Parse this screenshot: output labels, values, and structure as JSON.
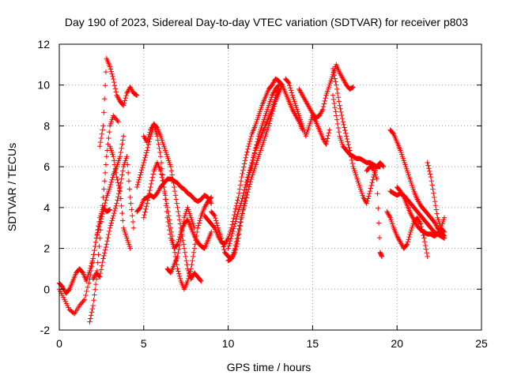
{
  "chart_data": {
    "type": "scatter",
    "title": "Day 190 of 2023, Sidereal Day-to-day VTEC variation (SDTVAR) for receiver p803",
    "xlabel": "GPS time / hours",
    "ylabel": "SDTVAR / TECUs",
    "xlim": [
      0,
      25
    ],
    "ylim": [
      -2,
      12
    ],
    "x_ticks": [
      "0",
      "5",
      "10",
      "15",
      "20",
      "25"
    ],
    "y_ticks": [
      "-2",
      "0",
      "2",
      "4",
      "6",
      "8",
      "10",
      "12"
    ],
    "grid": true,
    "marker": "+",
    "color": "#ff0000",
    "series": [
      {
        "x": [
          0.0,
          0.3,
          0.6,
          0.9,
          1.2,
          1.5,
          1.8,
          2.0,
          2.2,
          2.4,
          2.6,
          2.8,
          3.0,
          3.2,
          3.4,
          3.6,
          3.8
        ],
        "y": [
          0.0,
          -0.5,
          -1.0,
          -1.2,
          -0.8,
          -0.5,
          0.5,
          1.5,
          2.5,
          3.2,
          3.8,
          4.5,
          5.0,
          5.6,
          6.0,
          6.5,
          7.5
        ]
      },
      {
        "x": [
          0.0,
          0.2,
          0.4,
          0.6,
          0.8,
          1.0,
          1.2,
          1.4,
          1.6,
          1.8,
          2.0,
          2.2,
          2.4,
          2.6,
          2.8,
          3.0
        ],
        "y": [
          0.3,
          0.1,
          -0.2,
          0.0,
          0.4,
          0.8,
          1.0,
          0.8,
          0.4,
          0.9,
          1.5,
          2.5,
          3.5,
          4.0,
          3.8,
          3.9
        ]
      },
      {
        "x": [
          1.8,
          2.0,
          2.2,
          2.4,
          2.6,
          2.8,
          3.0,
          3.2,
          3.5
        ],
        "y": [
          -1.6,
          -0.8,
          0.5,
          2.5,
          4.5,
          6.5,
          8.0,
          8.5,
          8.2
        ]
      },
      {
        "x": [
          2.4,
          2.6,
          2.8,
          3.0,
          3.2,
          3.4,
          3.6,
          3.8,
          4.0,
          4.2,
          4.4,
          4.6
        ],
        "y": [
          7.0,
          8.0,
          11.3,
          10.9,
          10.3,
          9.5,
          9.2,
          9.0,
          9.6,
          9.9,
          9.6,
          9.5
        ]
      },
      {
        "x": [
          2.0,
          2.2,
          2.4,
          2.6,
          2.8,
          3.0,
          3.2,
          3.4,
          3.6,
          3.8,
          4.0,
          4.2,
          4.4
        ],
        "y": [
          0.5,
          0.8,
          0.6,
          1.5,
          2.2,
          3.0,
          3.6,
          4.2,
          5.0,
          6.0,
          6.5,
          4.5,
          3.0
        ]
      },
      {
        "x": [
          3.0,
          3.2,
          3.4,
          3.6,
          3.8,
          4.0,
          4.2
        ],
        "y": [
          7.0,
          6.5,
          5.5,
          4.8,
          3.0,
          2.5,
          2.0
        ]
      },
      {
        "x": [
          5.0,
          5.2,
          5.4,
          5.6,
          5.8,
          6.0,
          6.2,
          6.4,
          6.6,
          6.8,
          7.0,
          7.2,
          7.4,
          7.6,
          7.8,
          8.0,
          8.2,
          8.4
        ],
        "y": [
          7.5,
          7.2,
          7.8,
          8.1,
          7.9,
          7.5,
          7.0,
          6.5,
          6.0,
          5.0,
          4.0,
          3.0,
          2.0,
          1.0,
          0.5,
          0.8,
          0.6,
          0.4
        ]
      },
      {
        "x": [
          5.0,
          5.2,
          5.4,
          5.6,
          5.8,
          6.0,
          6.2,
          6.4,
          6.6,
          6.8,
          7.0,
          7.2,
          7.4,
          7.6,
          7.8,
          8.0,
          8.2,
          8.4,
          8.6,
          8.8,
          9.0
        ],
        "y": [
          3.5,
          4.2,
          5.0,
          5.8,
          6.2,
          5.8,
          5.0,
          4.0,
          3.0,
          2.0,
          1.0,
          0.4,
          0.0,
          0.4,
          1.0,
          2.0,
          3.0,
          3.6,
          4.0,
          4.3,
          4.5
        ]
      },
      {
        "x": [
          4.6,
          4.8,
          5.0,
          5.2,
          5.4,
          5.6,
          5.8,
          6.0,
          6.2,
          6.4,
          6.6,
          6.8,
          7.0,
          7.2,
          7.4,
          7.6,
          7.8,
          8.0,
          8.2,
          8.4,
          8.6,
          8.8,
          9.0
        ],
        "y": [
          3.8,
          4.0,
          4.4,
          4.5,
          4.6,
          4.5,
          4.7,
          5.0,
          5.2,
          5.4,
          5.4,
          5.3,
          5.2,
          5.0,
          4.9,
          4.7,
          4.6,
          4.4,
          4.3,
          4.4,
          4.6,
          4.5,
          4.2
        ]
      },
      {
        "x": [
          4.6,
          4.8,
          5.0,
          5.2,
          5.4,
          5.6,
          5.8,
          6.0,
          6.2,
          6.4,
          6.6,
          6.8,
          7.0,
          7.2,
          7.4,
          7.6,
          7.8,
          8.0,
          8.2,
          8.4,
          8.6,
          8.8,
          9.0
        ],
        "y": [
          5.0,
          5.6,
          6.2,
          6.8,
          7.5,
          8.0,
          7.5,
          6.5,
          5.0,
          3.5,
          2.5,
          2.0,
          2.2,
          2.8,
          3.2,
          3.4,
          3.0,
          2.6,
          2.3,
          2.1,
          2.0,
          2.4,
          2.8
        ]
      },
      {
        "x": [
          6.4,
          6.6,
          6.8,
          7.0,
          7.2,
          7.4,
          7.6,
          7.8,
          8.0
        ],
        "y": [
          1.0,
          0.8,
          1.2,
          1.6,
          2.5,
          3.5,
          4.0,
          3.5,
          3.0
        ]
      },
      {
        "x": [
          8.6,
          8.8,
          9.0,
          9.2,
          9.4,
          9.6,
          9.8,
          10.0,
          10.2,
          10.4,
          10.6,
          10.8,
          11.0,
          11.2,
          11.4,
          11.6,
          11.8,
          12.0,
          12.2,
          12.4,
          12.6,
          12.8,
          13.0,
          13.2,
          13.4,
          13.6,
          13.8,
          14.0,
          14.2,
          14.4
        ],
        "y": [
          3.6,
          3.4,
          3.2,
          3.0,
          2.6,
          2.3,
          2.2,
          2.5,
          3.0,
          3.8,
          4.5,
          5.5,
          6.3,
          7.0,
          7.6,
          8.0,
          8.5,
          9.0,
          9.4,
          9.8,
          10.0,
          10.3,
          10.2,
          10.0,
          9.6,
          9.2,
          8.8,
          8.5,
          8.2,
          7.8
        ]
      },
      {
        "x": [
          9.0,
          9.2,
          9.4,
          9.6,
          9.8,
          10.0,
          10.2,
          10.4,
          10.6,
          10.8,
          11.0,
          11.2,
          11.4,
          11.6,
          11.8,
          12.0,
          12.2,
          12.4,
          12.6,
          12.8,
          13.0
        ],
        "y": [
          3.8,
          3.6,
          3.0,
          2.5,
          1.8,
          1.6,
          1.5,
          1.8,
          2.5,
          3.5,
          4.5,
          5.5,
          6.0,
          6.8,
          7.5,
          8.0,
          8.5,
          9.0,
          9.5,
          9.8,
          10.0
        ]
      },
      {
        "x": [
          10.0,
          10.2,
          10.4,
          10.6,
          10.8,
          11.0,
          11.2,
          11.4,
          11.6,
          11.8,
          12.0,
          12.2,
          12.4,
          12.6,
          12.8,
          13.0,
          13.2
        ],
        "y": [
          1.4,
          1.5,
          2.0,
          2.8,
          3.6,
          4.2,
          4.9,
          5.5,
          6.0,
          6.5,
          7.0,
          7.5,
          8.0,
          8.6,
          9.2,
          9.6,
          10.0
        ]
      },
      {
        "x": [
          10.0,
          10.2,
          10.4,
          10.6,
          10.8,
          11.0,
          11.2,
          11.4,
          11.6,
          11.8,
          12.0,
          12.2,
          12.4,
          12.6,
          12.8,
          13.0
        ],
        "y": [
          2.0,
          2.6,
          3.2,
          3.8,
          4.3,
          5.0,
          5.6,
          6.2,
          6.8,
          7.2,
          7.6,
          8.0,
          8.4,
          8.8,
          9.4,
          9.8
        ]
      },
      {
        "x": [
          13.4,
          13.6,
          13.8,
          14.0,
          14.2,
          14.4,
          14.6,
          14.8,
          15.0,
          15.2,
          15.4,
          15.6,
          15.8,
          16.0
        ],
        "y": [
          10.3,
          10.1,
          9.5,
          9.0,
          8.5,
          8.0,
          7.5,
          8.0,
          8.5,
          8.2,
          7.8,
          7.4,
          7.1,
          7.8
        ]
      },
      {
        "x": [
          14.2,
          14.4,
          14.6,
          14.8,
          15.0,
          15.2,
          15.4,
          15.6,
          15.8,
          16.0,
          16.2,
          16.4,
          16.6,
          16.8,
          17.0,
          17.2,
          17.4
        ],
        "y": [
          9.8,
          9.5,
          9.2,
          8.9,
          8.6,
          8.4,
          8.5,
          8.8,
          9.5,
          10.0,
          10.5,
          11.0,
          10.6,
          10.3,
          10.0,
          9.8,
          9.9
        ]
      },
      {
        "x": [
          16.2,
          16.4,
          16.6,
          16.8,
          17.0,
          17.2,
          17.4,
          17.6,
          17.8,
          18.0,
          18.2,
          18.4,
          18.6,
          18.8,
          19.0,
          19.2
        ],
        "y": [
          10.8,
          10.0,
          9.0,
          8.2,
          7.5,
          6.8,
          6.0,
          5.5,
          5.0,
          4.5,
          4.2,
          4.8,
          5.5,
          6.0,
          6.2,
          6.0
        ]
      },
      {
        "x": [
          16.2,
          16.4,
          16.6,
          16.8,
          17.0,
          17.2,
          17.4,
          17.6,
          17.8,
          18.0,
          18.2,
          18.4,
          18.6,
          18.8,
          19.0
        ],
        "y": [
          9.5,
          8.5,
          7.5,
          7.0,
          6.8,
          6.6,
          6.5,
          6.4,
          6.4,
          6.3,
          6.2,
          6.2,
          6.1,
          6.0,
          6.0
        ]
      },
      {
        "x": [
          19.6,
          19.8,
          20.0,
          20.2,
          20.4,
          20.6,
          20.8,
          21.0,
          21.2,
          21.4,
          21.6,
          21.8,
          22.0,
          22.2,
          22.4,
          22.6,
          22.8
        ],
        "y": [
          7.8,
          7.6,
          7.2,
          6.8,
          6.3,
          5.8,
          5.3,
          4.8,
          4.4,
          4.1,
          3.9,
          3.7,
          3.5,
          3.3,
          3.0,
          2.8,
          2.6
        ]
      },
      {
        "x": [
          19.4,
          19.6,
          19.8,
          20.0,
          20.2,
          20.4,
          20.6,
          20.8,
          21.0,
          21.2,
          21.4,
          21.6,
          21.8
        ],
        "y": [
          3.8,
          3.5,
          3.0,
          2.6,
          2.3,
          2.0,
          2.2,
          2.8,
          3.3,
          3.5,
          3.2,
          2.5,
          1.6
        ]
      },
      {
        "x": [
          19.6,
          19.8,
          20.0,
          20.2,
          20.4,
          20.6,
          20.8,
          21.0,
          21.2,
          21.4,
          21.6,
          21.8,
          22.0,
          22.2,
          22.4,
          22.6,
          22.8
        ],
        "y": [
          4.8,
          4.7,
          4.6,
          4.7,
          4.6,
          4.4,
          4.2,
          4.0,
          3.8,
          3.6,
          3.4,
          3.2,
          3.0,
          2.8,
          2.7,
          2.6,
          2.5
        ]
      },
      {
        "x": [
          20.0,
          20.2,
          20.4,
          20.6,
          20.8,
          21.0,
          21.2,
          21.4,
          21.6,
          21.8,
          22.0,
          22.2,
          22.4,
          22.6,
          22.8
        ],
        "y": [
          5.0,
          4.8,
          4.5,
          4.1,
          3.7,
          3.4,
          3.1,
          2.9,
          2.8,
          2.7,
          2.7,
          2.6,
          2.7,
          3.0,
          3.5
        ]
      },
      {
        "x": [
          21.8,
          22.0,
          22.2,
          22.4,
          22.6,
          22.8
        ],
        "y": [
          6.2,
          5.5,
          4.5,
          3.5,
          3.0,
          2.8
        ]
      },
      {
        "x": [
          18.2,
          18.4,
          18.6,
          18.8,
          19.0,
          19.1
        ],
        "y": [
          5.8,
          6.0,
          5.9,
          5.4,
          1.8,
          1.6
        ]
      }
    ]
  }
}
